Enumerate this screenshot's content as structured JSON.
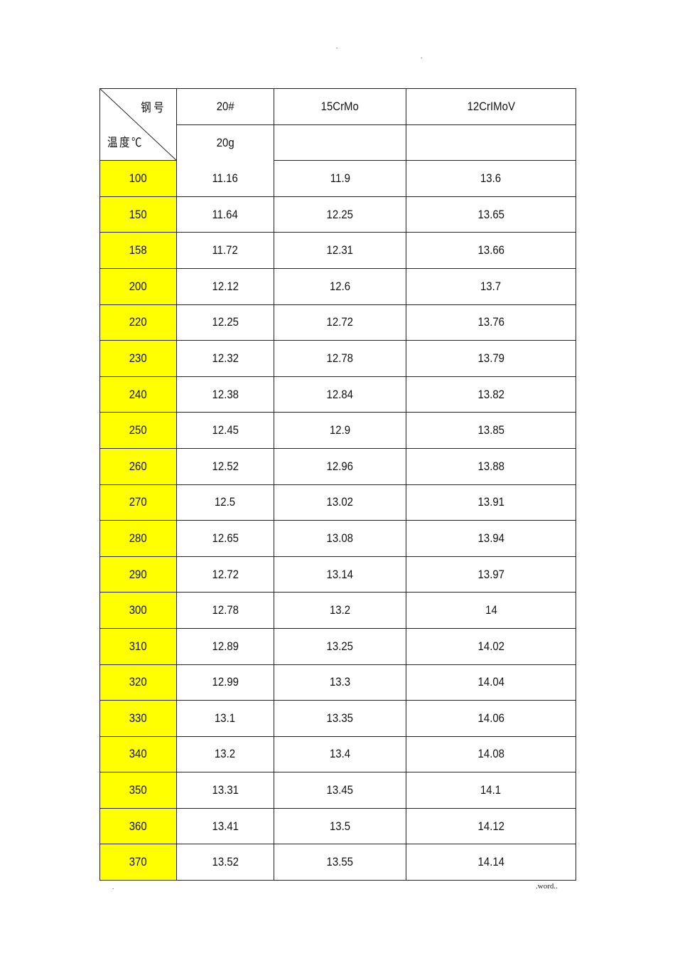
{
  "page_marks": {
    "top_dot_1": ".",
    "top_dot_2": ".",
    "bottom_dot": ".",
    "footer": ".word.."
  },
  "table": {
    "corner": {
      "top_label": "钢号",
      "bottom_label": "温度℃"
    },
    "headers": [
      "20#",
      "15CrMo",
      "12CrIMoV"
    ],
    "subheaders": [
      "20g",
      "",
      ""
    ],
    "highlight_color": "#ffff00",
    "rows": [
      [
        "100",
        "11.16",
        "11.9",
        "13.6"
      ],
      [
        "150",
        "11.64",
        "12.25",
        "13.65"
      ],
      [
        "158",
        "11.72",
        "12.31",
        "13.66"
      ],
      [
        "200",
        "12.12",
        "12.6",
        "13.7"
      ],
      [
        "220",
        "12.25",
        "12.72",
        "13.76"
      ],
      [
        "230",
        "12.32",
        "12.78",
        "13.79"
      ],
      [
        "240",
        "12.38",
        "12.84",
        "13.82"
      ],
      [
        "250",
        "12.45",
        "12.9",
        "13.85"
      ],
      [
        "260",
        "12.52",
        "12.96",
        "13.88"
      ],
      [
        "270",
        "12.5",
        "13.02",
        "13.91"
      ],
      [
        "280",
        "12.65",
        "13.08",
        "13.94"
      ],
      [
        "290",
        "12.72",
        "13.14",
        "13.97"
      ],
      [
        "300",
        "12.78",
        "13.2",
        "14"
      ],
      [
        "310",
        "12.89",
        "13.25",
        "14.02"
      ],
      [
        "320",
        "12.99",
        "13.3",
        "14.04"
      ],
      [
        "330",
        "13.1",
        "13.35",
        "14.06"
      ],
      [
        "340",
        "13.2",
        "13.4",
        "14.08"
      ],
      [
        "350",
        "13.31",
        "13.45",
        "14.1"
      ],
      [
        "360",
        "13.41",
        "13.5",
        "14.12"
      ],
      [
        "370",
        "13.52",
        "13.55",
        "14.14"
      ]
    ]
  }
}
